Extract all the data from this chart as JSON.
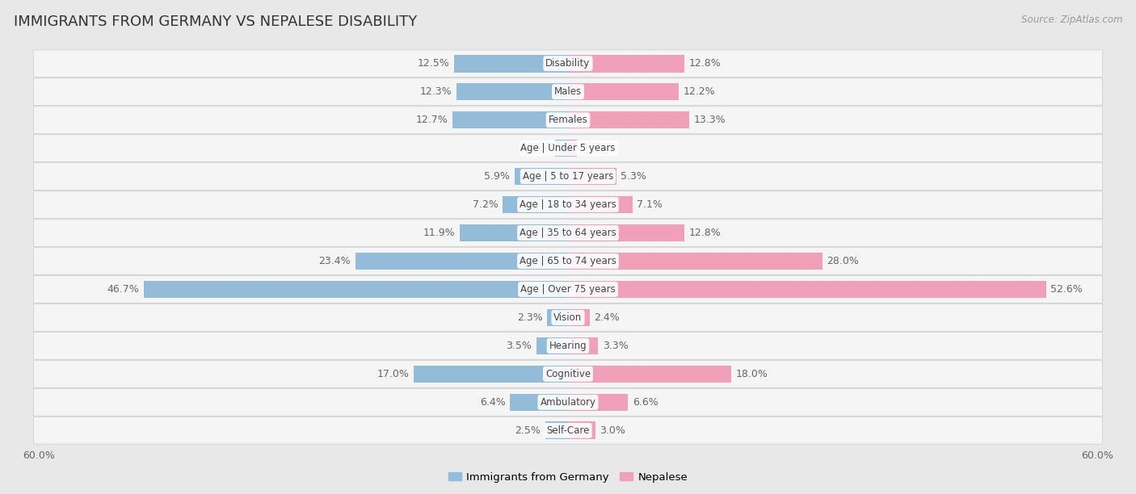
{
  "title": "IMMIGRANTS FROM GERMANY VS NEPALESE DISABILITY",
  "source": "Source: ZipAtlas.com",
  "categories": [
    "Disability",
    "Males",
    "Females",
    "Age | Under 5 years",
    "Age | 5 to 17 years",
    "Age | 18 to 34 years",
    "Age | 35 to 64 years",
    "Age | 65 to 74 years",
    "Age | Over 75 years",
    "Vision",
    "Hearing",
    "Cognitive",
    "Ambulatory",
    "Self-Care"
  ],
  "germany_values": [
    12.5,
    12.3,
    12.7,
    1.4,
    5.9,
    7.2,
    11.9,
    23.4,
    46.7,
    2.3,
    3.5,
    17.0,
    6.4,
    2.5
  ],
  "nepal_values": [
    12.8,
    12.2,
    13.3,
    0.97,
    5.3,
    7.1,
    12.8,
    28.0,
    52.6,
    2.4,
    3.3,
    18.0,
    6.6,
    3.0
  ],
  "germany_color": "#92bcd8",
  "nepal_color": "#f0a0b8",
  "germany_label": "Immigrants from Germany",
  "nepal_label": "Nepalese",
  "xlim": 60.0,
  "background_color": "#e8e8e8",
  "row_bg": "#f5f5f5",
  "bar_height": 0.62,
  "label_fontsize": 9,
  "title_fontsize": 13,
  "category_fontsize": 8.5,
  "value_color": "#666666"
}
